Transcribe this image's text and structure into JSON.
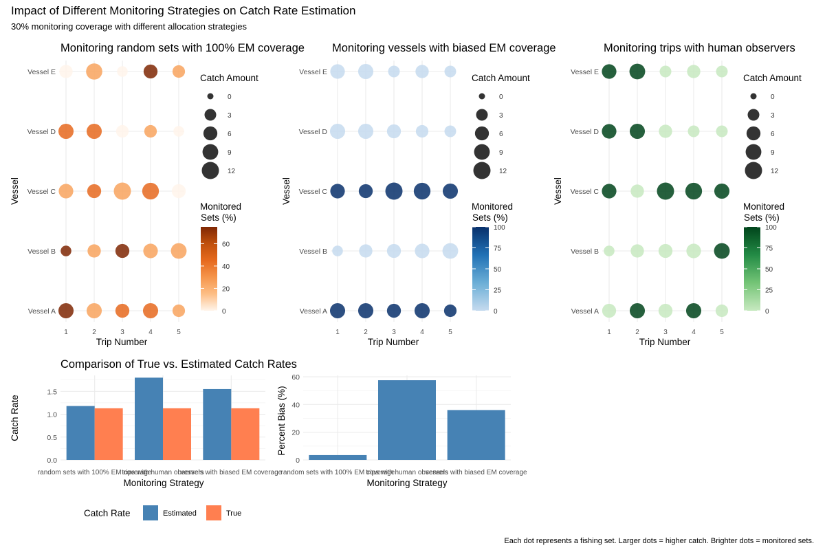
{
  "page": {
    "title": "Impact of Different Monitoring Strategies on Catch Rate Estimation",
    "subtitle": "30% monitoring coverage with different allocation strategies",
    "caption": "Each dot represents a fishing set. Larger dots = higher catch. Brighter dots = monitored sets."
  },
  "colors": {
    "oranges": [
      "#FFF5EB",
      "#FDBE85",
      "#F5954B",
      "#E6691E",
      "#C0500C",
      "#7F2704"
    ],
    "blues": [
      "#C6DBEF",
      "#6BAED6",
      "#2171B5",
      "#08306B"
    ],
    "greens": [
      "#C7E9C0",
      "#74C476",
      "#238B45",
      "#00441B"
    ],
    "estimated": "#4682B4",
    "true": "#FF7F50",
    "grid": "#EBEBEB",
    "dot_legend": "#333333"
  },
  "chart_data": [
    {
      "type": "scatter",
      "title": "Monitoring random sets with 100% EM coverage",
      "xlabel": "Trip Number",
      "ylabel": "Vessel",
      "x_ticks": [
        "1",
        "2",
        "3",
        "4",
        "5"
      ],
      "vessels": [
        "Vessel A",
        "Vessel B",
        "Vessel C",
        "Vessel D",
        "Vessel E"
      ],
      "palette": "oranges",
      "color_max": 75,
      "size_legend": {
        "title": "Catch Amount",
        "values": [
          0,
          3,
          6,
          9,
          12
        ]
      },
      "color_legend": {
        "title_lines": [
          "Monitored",
          "Sets (%)"
        ],
        "ticks": [
          0,
          20,
          40,
          60
        ]
      },
      "points": [
        {
          "vessel": "Vessel A",
          "trip": 1,
          "catch": 8,
          "monitored": 75
        },
        {
          "vessel": "Vessel A",
          "trip": 2,
          "catch": 8,
          "monitored": 25
        },
        {
          "vessel": "Vessel A",
          "trip": 3,
          "catch": 6,
          "monitored": 45
        },
        {
          "vessel": "Vessel A",
          "trip": 4,
          "catch": 8,
          "monitored": 45
        },
        {
          "vessel": "Vessel A",
          "trip": 5,
          "catch": 4,
          "monitored": 25
        },
        {
          "vessel": "Vessel B",
          "trip": 1,
          "catch": 2,
          "monitored": 75
        },
        {
          "vessel": "Vessel B",
          "trip": 2,
          "catch": 5,
          "monitored": 25
        },
        {
          "vessel": "Vessel B",
          "trip": 3,
          "catch": 6,
          "monitored": 75
        },
        {
          "vessel": "Vessel B",
          "trip": 4,
          "catch": 7,
          "monitored": 25
        },
        {
          "vessel": "Vessel B",
          "trip": 5,
          "catch": 9,
          "monitored": 25
        },
        {
          "vessel": "Vessel C",
          "trip": 1,
          "catch": 7,
          "monitored": 25
        },
        {
          "vessel": "Vessel C",
          "trip": 2,
          "catch": 6,
          "monitored": 45
        },
        {
          "vessel": "Vessel C",
          "trip": 3,
          "catch": 12,
          "monitored": 25
        },
        {
          "vessel": "Vessel C",
          "trip": 4,
          "catch": 11,
          "monitored": 45
        },
        {
          "vessel": "Vessel C",
          "trip": 5,
          "catch": 6,
          "monitored": 0
        },
        {
          "vessel": "Vessel D",
          "trip": 1,
          "catch": 8,
          "monitored": 45
        },
        {
          "vessel": "Vessel D",
          "trip": 2,
          "catch": 8,
          "monitored": 45
        },
        {
          "vessel": "Vessel D",
          "trip": 3,
          "catch": 4,
          "monitored": 0
        },
        {
          "vessel": "Vessel D",
          "trip": 4,
          "catch": 4,
          "monitored": 25
        },
        {
          "vessel": "Vessel D",
          "trip": 5,
          "catch": 2,
          "monitored": 0
        },
        {
          "vessel": "Vessel E",
          "trip": 1,
          "catch": 5,
          "monitored": 0
        },
        {
          "vessel": "Vessel E",
          "trip": 2,
          "catch": 10,
          "monitored": 25
        },
        {
          "vessel": "Vessel E",
          "trip": 3,
          "catch": 2,
          "monitored": 0
        },
        {
          "vessel": "Vessel E",
          "trip": 4,
          "catch": 6,
          "monitored": 75
        },
        {
          "vessel": "Vessel E",
          "trip": 5,
          "catch": 4,
          "monitored": 25
        }
      ]
    },
    {
      "type": "scatter",
      "title": "Monitoring vessels with biased EM coverage",
      "xlabel": "Trip Number",
      "ylabel": "Vessel",
      "x_ticks": [
        "1",
        "2",
        "3",
        "4",
        "5"
      ],
      "vessels": [
        "Vessel A",
        "Vessel B",
        "Vessel C",
        "Vessel D",
        "Vessel E"
      ],
      "palette": "blues",
      "color_max": 100,
      "size_legend": {
        "title": "Catch Amount",
        "values": [
          0,
          3,
          6,
          9,
          12
        ]
      },
      "color_legend": {
        "title_lines": [
          "Monitored",
          "Sets (%)"
        ],
        "ticks": [
          0,
          25,
          50,
          75,
          100
        ]
      },
      "points": [
        {
          "vessel": "Vessel A",
          "trip": 1,
          "catch": 8,
          "monitored": 100
        },
        {
          "vessel": "Vessel A",
          "trip": 2,
          "catch": 8,
          "monitored": 100
        },
        {
          "vessel": "Vessel A",
          "trip": 3,
          "catch": 6,
          "monitored": 100
        },
        {
          "vessel": "Vessel A",
          "trip": 4,
          "catch": 8,
          "monitored": 100
        },
        {
          "vessel": "Vessel A",
          "trip": 5,
          "catch": 4,
          "monitored": 100
        },
        {
          "vessel": "Vessel B",
          "trip": 1,
          "catch": 2,
          "monitored": 0
        },
        {
          "vessel": "Vessel B",
          "trip": 2,
          "catch": 5,
          "monitored": 0
        },
        {
          "vessel": "Vessel B",
          "trip": 3,
          "catch": 6,
          "monitored": 0
        },
        {
          "vessel": "Vessel B",
          "trip": 4,
          "catch": 7,
          "monitored": 0
        },
        {
          "vessel": "Vessel B",
          "trip": 5,
          "catch": 9,
          "monitored": 0
        },
        {
          "vessel": "Vessel C",
          "trip": 1,
          "catch": 7,
          "monitored": 100
        },
        {
          "vessel": "Vessel C",
          "trip": 2,
          "catch": 6,
          "monitored": 100
        },
        {
          "vessel": "Vessel C",
          "trip": 3,
          "catch": 12,
          "monitored": 100
        },
        {
          "vessel": "Vessel C",
          "trip": 4,
          "catch": 11,
          "monitored": 100
        },
        {
          "vessel": "Vessel C",
          "trip": 5,
          "catch": 8,
          "monitored": 100
        },
        {
          "vessel": "Vessel D",
          "trip": 1,
          "catch": 8,
          "monitored": 0
        },
        {
          "vessel": "Vessel D",
          "trip": 2,
          "catch": 8,
          "monitored": 0
        },
        {
          "vessel": "Vessel D",
          "trip": 3,
          "catch": 6,
          "monitored": 0
        },
        {
          "vessel": "Vessel D",
          "trip": 4,
          "catch": 4,
          "monitored": 0
        },
        {
          "vessel": "Vessel D",
          "trip": 5,
          "catch": 3,
          "monitored": 0
        },
        {
          "vessel": "Vessel E",
          "trip": 1,
          "catch": 7,
          "monitored": 0
        },
        {
          "vessel": "Vessel E",
          "trip": 2,
          "catch": 8,
          "monitored": 0
        },
        {
          "vessel": "Vessel E",
          "trip": 3,
          "catch": 3,
          "monitored": 0
        },
        {
          "vessel": "Vessel E",
          "trip": 4,
          "catch": 5,
          "monitored": 0
        },
        {
          "vessel": "Vessel E",
          "trip": 5,
          "catch": 3,
          "monitored": 0
        }
      ]
    },
    {
      "type": "scatter",
      "title": "Monitoring trips with human observers",
      "xlabel": "Trip Number",
      "ylabel": "Vessel",
      "x_ticks": [
        "1",
        "2",
        "3",
        "4",
        "5"
      ],
      "vessels": [
        "Vessel A",
        "Vessel B",
        "Vessel C",
        "Vessel D",
        "Vessel E"
      ],
      "palette": "greens",
      "color_max": 100,
      "size_legend": {
        "title": "Catch Amount",
        "values": [
          0,
          3,
          6,
          9,
          12
        ]
      },
      "color_legend": {
        "title_lines": [
          "Monitored",
          "Sets (%)"
        ],
        "ticks": [
          0,
          25,
          50,
          75,
          100
        ]
      },
      "points": [
        {
          "vessel": "Vessel A",
          "trip": 1,
          "catch": 6,
          "monitored": 0
        },
        {
          "vessel": "Vessel A",
          "trip": 2,
          "catch": 8,
          "monitored": 100
        },
        {
          "vessel": "Vessel A",
          "trip": 3,
          "catch": 6,
          "monitored": 0
        },
        {
          "vessel": "Vessel A",
          "trip": 4,
          "catch": 8,
          "monitored": 100
        },
        {
          "vessel": "Vessel A",
          "trip": 5,
          "catch": 4,
          "monitored": 0
        },
        {
          "vessel": "Vessel B",
          "trip": 1,
          "catch": 2,
          "monitored": 0
        },
        {
          "vessel": "Vessel B",
          "trip": 2,
          "catch": 5,
          "monitored": 0
        },
        {
          "vessel": "Vessel B",
          "trip": 3,
          "catch": 6,
          "monitored": 0
        },
        {
          "vessel": "Vessel B",
          "trip": 4,
          "catch": 7,
          "monitored": 0
        },
        {
          "vessel": "Vessel B",
          "trip": 5,
          "catch": 9,
          "monitored": 100
        },
        {
          "vessel": "Vessel C",
          "trip": 1,
          "catch": 7,
          "monitored": 100
        },
        {
          "vessel": "Vessel C",
          "trip": 2,
          "catch": 5,
          "monitored": 0
        },
        {
          "vessel": "Vessel C",
          "trip": 3,
          "catch": 12,
          "monitored": 100
        },
        {
          "vessel": "Vessel C",
          "trip": 4,
          "catch": 11,
          "monitored": 100
        },
        {
          "vessel": "Vessel C",
          "trip": 5,
          "catch": 8,
          "monitored": 100
        },
        {
          "vessel": "Vessel D",
          "trip": 1,
          "catch": 7,
          "monitored": 100
        },
        {
          "vessel": "Vessel D",
          "trip": 2,
          "catch": 8,
          "monitored": 100
        },
        {
          "vessel": "Vessel D",
          "trip": 3,
          "catch": 5,
          "monitored": 0
        },
        {
          "vessel": "Vessel D",
          "trip": 4,
          "catch": 3,
          "monitored": 0
        },
        {
          "vessel": "Vessel D",
          "trip": 5,
          "catch": 3,
          "monitored": 0
        },
        {
          "vessel": "Vessel E",
          "trip": 1,
          "catch": 7,
          "monitored": 100
        },
        {
          "vessel": "Vessel E",
          "trip": 2,
          "catch": 9,
          "monitored": 100
        },
        {
          "vessel": "Vessel E",
          "trip": 3,
          "catch": 3,
          "monitored": 0
        },
        {
          "vessel": "Vessel E",
          "trip": 4,
          "catch": 5,
          "monitored": 0
        },
        {
          "vessel": "Vessel E",
          "trip": 5,
          "catch": 3,
          "monitored": 0
        }
      ]
    },
    {
      "type": "bar",
      "title": "Comparison of True vs. Estimated Catch Rates",
      "xlabel": "Monitoring Strategy",
      "ylabel": "Catch Rate",
      "categories": [
        "random sets with 100% EM coverage",
        "trips with human observers",
        "vessels with biased EM coverage"
      ],
      "series": [
        {
          "name": "Estimated",
          "color": "#4682B4",
          "values": [
            1.18,
            1.8,
            1.55
          ]
        },
        {
          "name": "True",
          "color": "#FF7F50",
          "values": [
            1.13,
            1.13,
            1.13
          ]
        }
      ],
      "ylim": [
        0,
        1.85
      ],
      "y_ticks": [
        "0.0",
        "0.5",
        "1.0",
        "1.5"
      ],
      "legend_title": "Catch Rate"
    },
    {
      "type": "bar",
      "xlabel": "Monitoring Strategy",
      "ylabel": "Percent Bias (%)",
      "categories": [
        "random sets with 100% EM coverage",
        "trips with human observers",
        "vessels with biased EM coverage"
      ],
      "values": [
        3.5,
        57.5,
        36.0
      ],
      "color": "#4682B4",
      "ylim": [
        0,
        61
      ],
      "y_ticks": [
        "0",
        "20",
        "40",
        "60"
      ]
    }
  ]
}
